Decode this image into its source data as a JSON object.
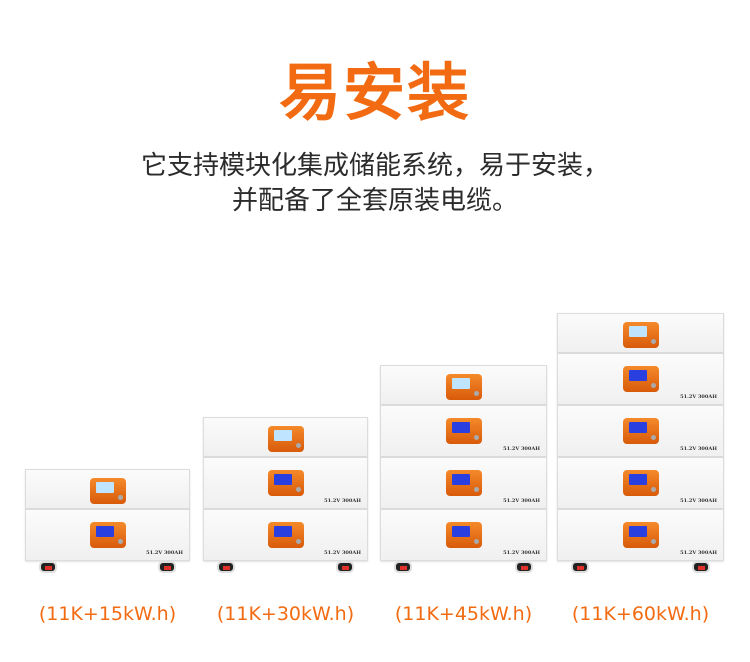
{
  "title": "易安装",
  "subtitle": [
    "它支持模块化集成储能系统，易于安装，",
    "并配备了全套原装电缆。"
  ],
  "module_spec": "51.2V 300AH",
  "colors": {
    "accent": "#f26b12",
    "text": "#2b2b2b"
  },
  "stacks": [
    {
      "label": "(11K+15kW.h)",
      "batteries": 1
    },
    {
      "label": "(11K+30kW.h)",
      "batteries": 2
    },
    {
      "label": "(11K+45kW.h)",
      "batteries": 3
    },
    {
      "label": "(11K+60kW.h)",
      "batteries": 4
    }
  ]
}
